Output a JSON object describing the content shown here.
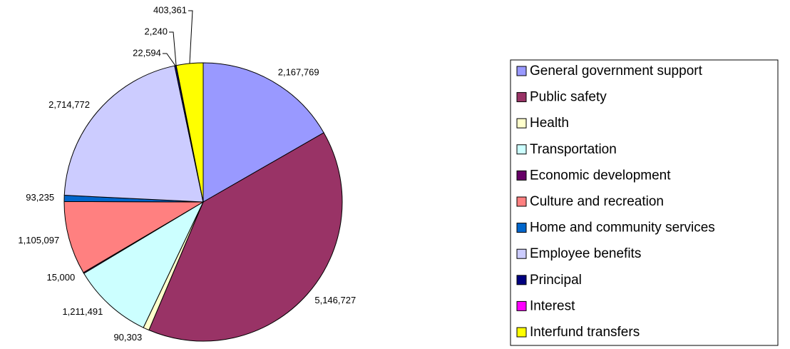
{
  "chart_data": {
    "type": "pie",
    "categories": [
      "General government support",
      "Public safety",
      "Health",
      "Transportation",
      "Economic development",
      "Culture and recreation",
      "Home and community services",
      "Employee benefits",
      "Principal",
      "Interest",
      "Interfund transfers"
    ],
    "values": [
      2167769,
      5146727,
      90303,
      1211491,
      15000,
      1105097,
      93235,
      2714772,
      22594,
      2240,
      403361
    ],
    "value_labels": [
      "2,167,769",
      "5,146,727",
      "90,303",
      "1,211,491",
      "15,000",
      "1,105,097",
      "93,235",
      "2,714,772",
      "22,594",
      "2,240",
      "403,361"
    ],
    "colors": [
      "#9999ff",
      "#993366",
      "#ffffcc",
      "#ccffff",
      "#660066",
      "#ff8080",
      "#0066cc",
      "#ccccff",
      "#000080",
      "#ff00ff",
      "#ffff00"
    ],
    "legend": "right"
  }
}
